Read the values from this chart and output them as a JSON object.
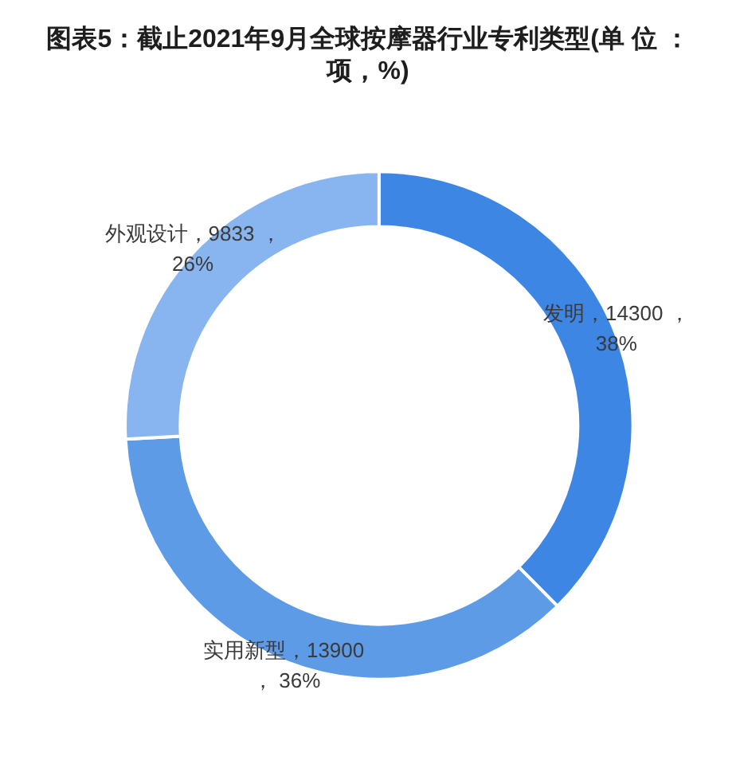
{
  "chart_data": {
    "type": "donut",
    "title": "图表5：截止2021年9月全球按摩器行业专利类型(单 位 ：项，%)",
    "categories": [
      "发明",
      "实用新型",
      "外观设计"
    ],
    "values": [
      14300,
      13900,
      9833
    ],
    "colors": [
      "#3d86e3",
      "#5d9be6",
      "#88b5ef"
    ],
    "value_labels": [
      "14300 ，38%",
      "13900 ， 36%",
      "9833 ，26%"
    ]
  }
}
